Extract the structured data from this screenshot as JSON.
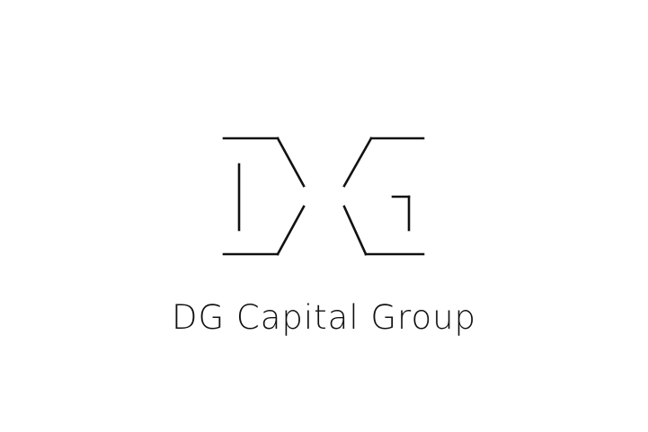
{
  "logo": {
    "icon": "dg-monogram-icon",
    "color": "#111111",
    "background": "#ffffff"
  },
  "brand": {
    "name": "DG Capital Group"
  }
}
